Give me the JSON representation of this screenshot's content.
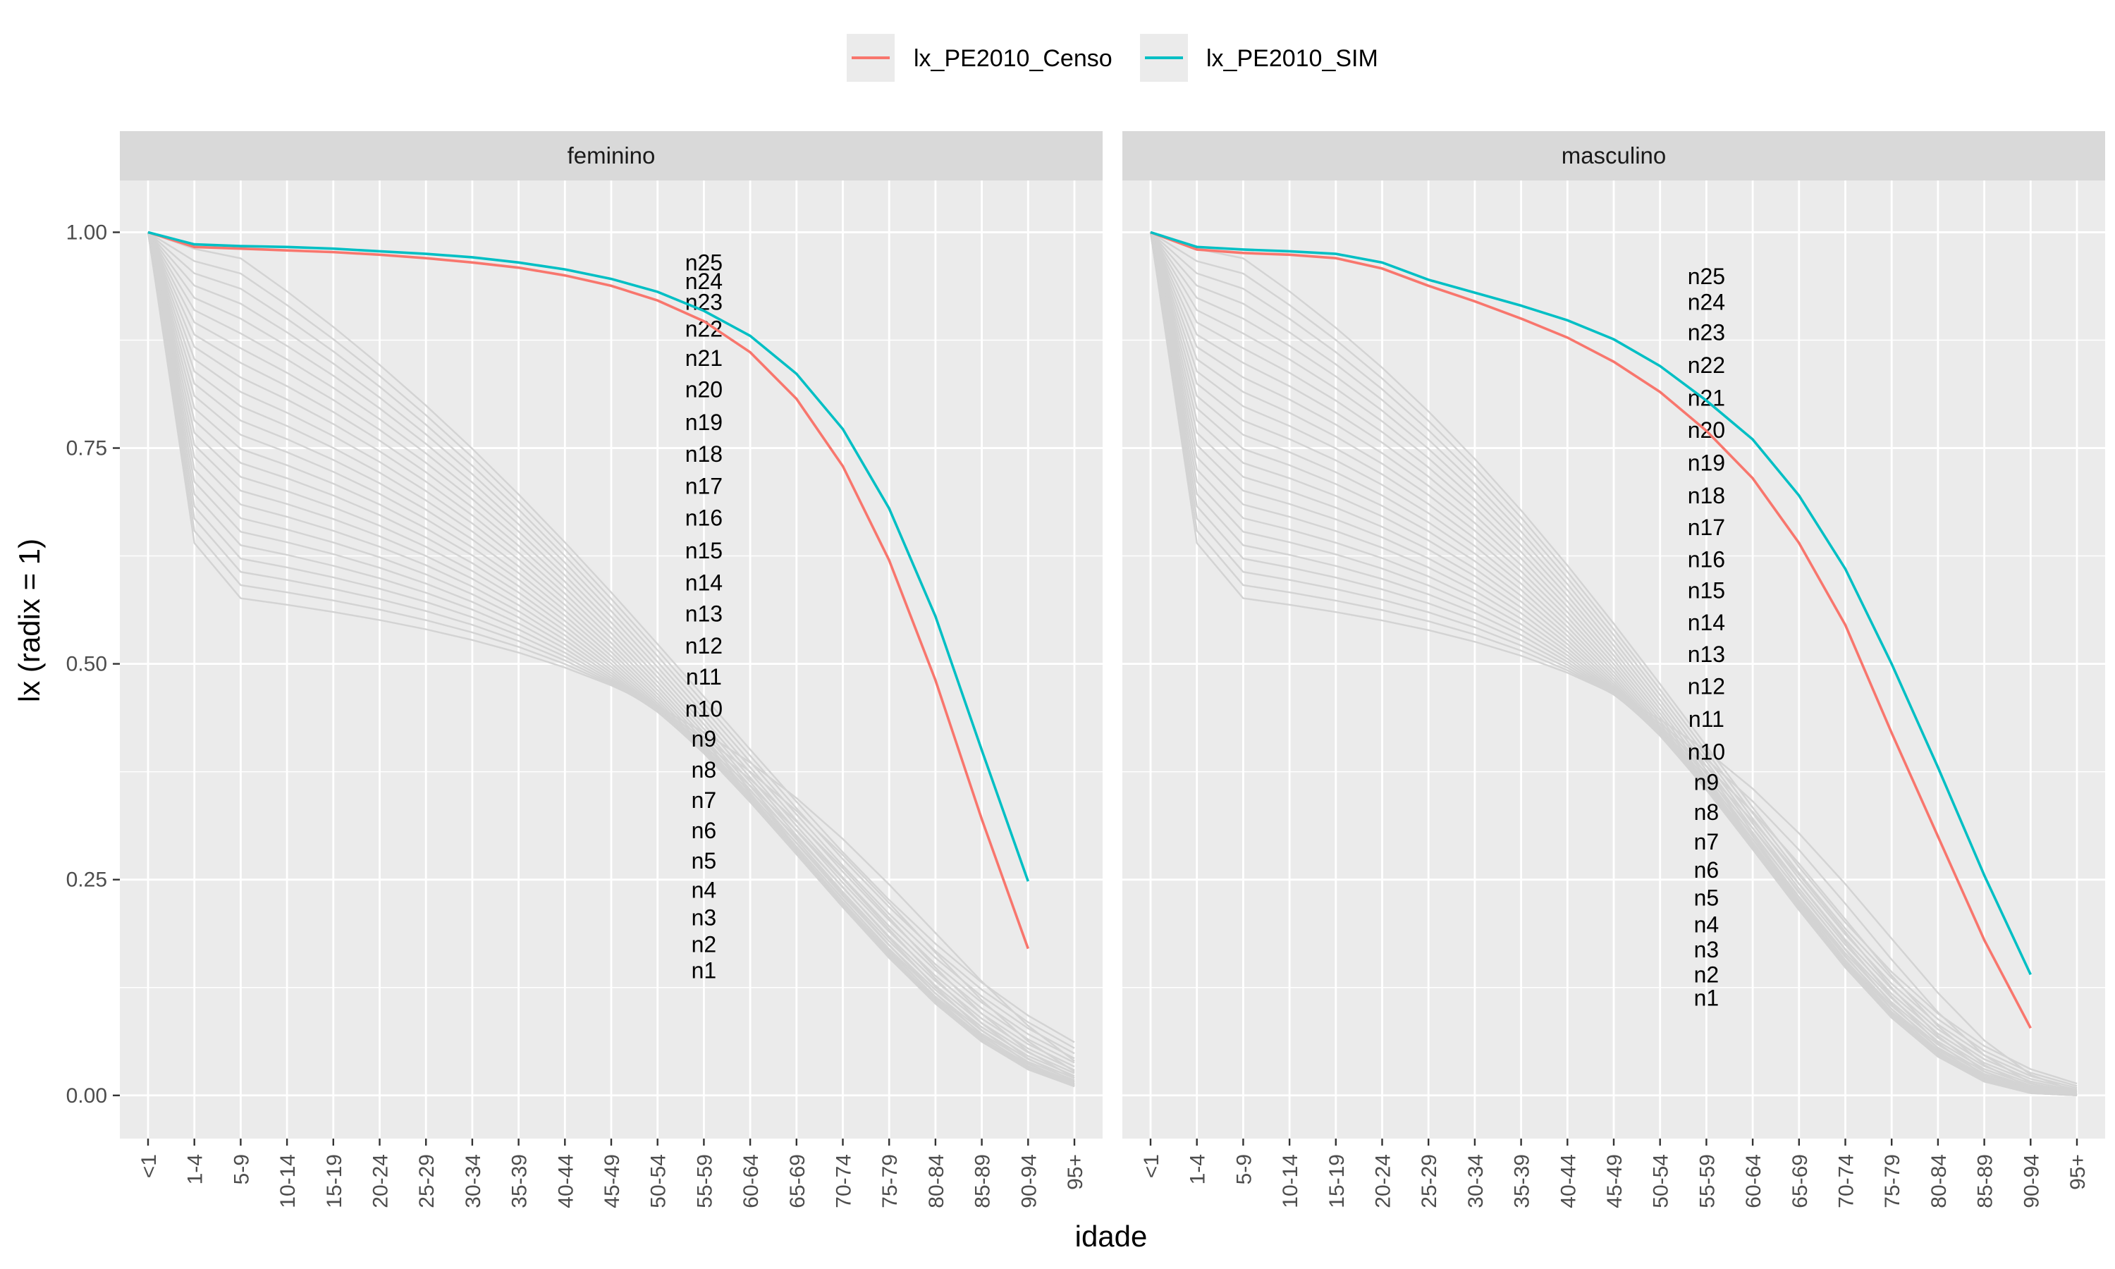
{
  "chart_data": {
    "type": "line",
    "x": [
      "<1",
      "1-4",
      "5-9",
      "10-14",
      "15-19",
      "20-24",
      "25-29",
      "30-34",
      "35-39",
      "40-44",
      "45-49",
      "50-54",
      "55-59",
      "60-64",
      "65-69",
      "70-74",
      "75-79",
      "80-84",
      "85-89",
      "90-94",
      "95+"
    ],
    "xlabel": "idade",
    "ylabel": "lx (radix = 1)",
    "ylim": [
      -0.05,
      1.06
    ],
    "yticks": [
      0.0,
      0.25,
      0.5,
      0.75,
      1.0
    ],
    "ytick_labels": [
      "0.00",
      "0.25",
      "0.50",
      "0.75",
      "1.00"
    ],
    "grid": true,
    "legend": {
      "placement": "top",
      "entries": [
        "lx_PE2010_Censo",
        "lx_PE2010_SIM"
      ]
    },
    "colors": {
      "lx_PE2010_Censo": "#F8766D",
      "lx_PE2010_SIM": "#00BFC4",
      "reference": "#d3d3d3"
    },
    "facets": [
      {
        "title": "feminino",
        "series": [
          {
            "name": "lx_PE2010_Censo",
            "values": [
              1.0,
              0.983,
              0.981,
              0.979,
              0.977,
              0.974,
              0.97,
              0.965,
              0.959,
              0.95,
              0.938,
              0.921,
              0.897,
              0.861,
              0.807,
              0.729,
              0.62,
              0.481,
              0.32,
              0.17,
              null
            ]
          },
          {
            "name": "lx_PE2010_SIM",
            "values": [
              1.0,
              0.986,
              0.984,
              0.983,
              0.981,
              0.978,
              0.975,
              0.971,
              0.965,
              0.957,
              0.946,
              0.931,
              0.909,
              0.88,
              0.836,
              0.772,
              0.68,
              0.555,
              0.4,
              0.248,
              null
            ]
          }
        ],
        "reference_labels": [
          "n1",
          "n2",
          "n3",
          "n4",
          "n5",
          "n6",
          "n7",
          "n8",
          "n9",
          "n10",
          "n11",
          "n12",
          "n13",
          "n14",
          "n15",
          "n16",
          "n17",
          "n18",
          "n19",
          "n20",
          "n21",
          "n22",
          "n23",
          "n24",
          "n25"
        ],
        "reference_label_y": [
          0.145,
          0.175,
          0.206,
          0.238,
          0.272,
          0.307,
          0.342,
          0.377,
          0.413,
          0.448,
          0.485,
          0.521,
          0.558,
          0.594,
          0.631,
          0.669,
          0.706,
          0.743,
          0.78,
          0.818,
          0.854,
          0.888,
          0.919,
          0.943,
          0.965
        ]
      },
      {
        "title": "masculino",
        "series": [
          {
            "name": "lx_PE2010_Censo",
            "values": [
              1.0,
              0.98,
              0.976,
              0.974,
              0.97,
              0.958,
              0.938,
              0.92,
              0.9,
              0.878,
              0.85,
              0.815,
              0.77,
              0.715,
              0.64,
              0.545,
              0.42,
              0.3,
              0.18,
              0.078,
              null
            ]
          },
          {
            "name": "lx_PE2010_SIM",
            "values": [
              1.0,
              0.983,
              0.98,
              0.978,
              0.975,
              0.965,
              0.945,
              0.93,
              0.915,
              0.898,
              0.876,
              0.845,
              0.805,
              0.76,
              0.695,
              0.61,
              0.5,
              0.38,
              0.255,
              0.14,
              null
            ]
          }
        ],
        "reference_labels": [
          "n1",
          "n2",
          "n3",
          "n4",
          "n5",
          "n6",
          "n7",
          "n8",
          "n9",
          "n10",
          "n11",
          "n12",
          "n13",
          "n14",
          "n15",
          "n16",
          "n17",
          "n18",
          "n19",
          "n20",
          "n21",
          "n22",
          "n23",
          "n24",
          "n25"
        ],
        "reference_label_y": [
          0.113,
          0.14,
          0.169,
          0.198,
          0.229,
          0.261,
          0.294,
          0.328,
          0.363,
          0.398,
          0.436,
          0.474,
          0.511,
          0.548,
          0.585,
          0.621,
          0.658,
          0.695,
          0.733,
          0.771,
          0.808,
          0.846,
          0.884,
          0.919,
          0.949
        ]
      }
    ]
  }
}
